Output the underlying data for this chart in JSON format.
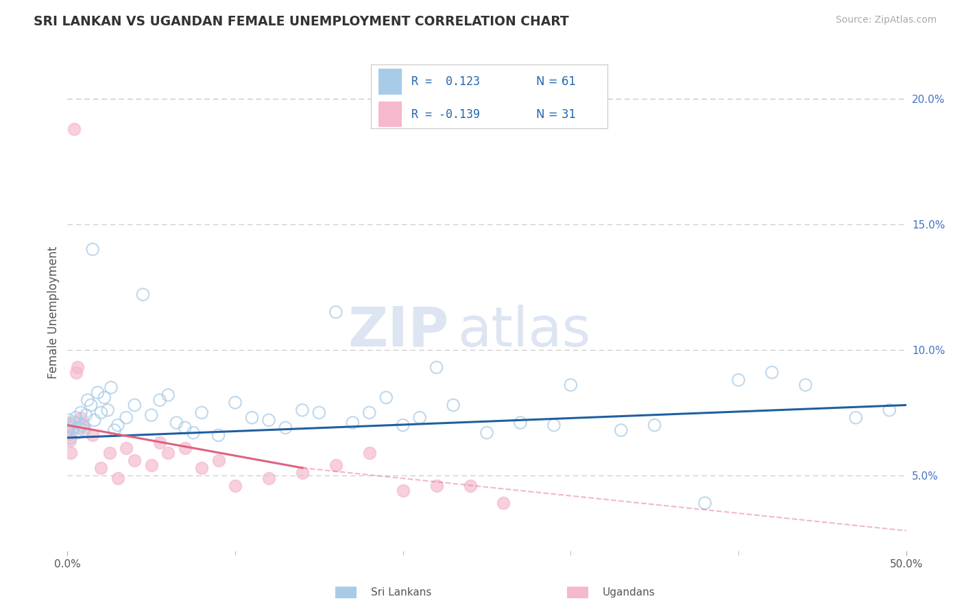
{
  "title": "SRI LANKAN VS UGANDAN FEMALE UNEMPLOYMENT CORRELATION CHART",
  "source": "Source: ZipAtlas.com",
  "ylabel": "Female Unemployment",
  "xlim": [
    0,
    50
  ],
  "ylim": [
    2,
    21
  ],
  "yticks": [
    5,
    10,
    15,
    20
  ],
  "ytick_labels": [
    "5.0%",
    "10.0%",
    "15.0%",
    "20.0%"
  ],
  "color_sri": "#a8cce8",
  "color_uga": "#f5b8cc",
  "color_sri_line": "#1f5f9e",
  "color_uga_line": "#e06080",
  "sri_x": [
    0.05,
    0.1,
    0.15,
    0.2,
    0.3,
    0.4,
    0.5,
    0.6,
    0.7,
    0.8,
    0.9,
    1.0,
    1.1,
    1.2,
    1.4,
    1.5,
    1.6,
    1.8,
    2.0,
    2.2,
    2.4,
    2.6,
    2.8,
    3.0,
    3.5,
    4.0,
    4.5,
    5.0,
    5.5,
    6.0,
    6.5,
    7.0,
    7.5,
    8.0,
    9.0,
    10.0,
    11.0,
    12.0,
    13.0,
    14.0,
    15.0,
    16.0,
    17.0,
    18.0,
    19.0,
    20.0,
    21.0,
    22.0,
    23.0,
    25.0,
    27.0,
    29.0,
    30.0,
    33.0,
    35.0,
    38.0,
    40.0,
    42.0,
    44.0,
    47.0,
    49.0
  ],
  "sri_y": [
    6.8,
    7.2,
    6.5,
    7.0,
    6.9,
    7.1,
    7.3,
    6.7,
    6.9,
    7.5,
    7.0,
    6.8,
    7.4,
    8.0,
    7.8,
    14.0,
    7.2,
    8.3,
    7.5,
    8.1,
    7.6,
    8.5,
    6.8,
    7.0,
    7.3,
    7.8,
    12.2,
    7.4,
    8.0,
    8.2,
    7.1,
    6.9,
    6.7,
    7.5,
    6.6,
    7.9,
    7.3,
    7.2,
    6.9,
    7.6,
    7.5,
    11.5,
    7.1,
    7.5,
    8.1,
    7.0,
    7.3,
    9.3,
    7.8,
    6.7,
    7.1,
    7.0,
    8.6,
    6.8,
    7.0,
    3.9,
    8.8,
    9.1,
    8.6,
    7.3,
    7.6
  ],
  "uga_x": [
    0.05,
    0.1,
    0.15,
    0.2,
    0.3,
    0.4,
    0.5,
    0.6,
    0.8,
    1.0,
    1.5,
    2.0,
    2.5,
    3.0,
    3.5,
    4.0,
    5.0,
    5.5,
    6.0,
    7.0,
    8.0,
    9.0,
    10.0,
    12.0,
    14.0,
    16.0,
    18.0,
    20.0,
    22.0,
    24.0,
    26.0
  ],
  "uga_y": [
    6.6,
    7.1,
    6.4,
    5.9,
    6.8,
    18.8,
    9.1,
    9.3,
    7.3,
    6.9,
    6.6,
    5.3,
    5.9,
    4.9,
    6.1,
    5.6,
    5.4,
    6.3,
    5.9,
    6.1,
    5.3,
    5.6,
    4.6,
    4.9,
    5.1,
    5.4,
    5.9,
    4.4,
    4.6,
    4.6,
    3.9
  ],
  "sri_trend": [
    0,
    50,
    6.5,
    7.8
  ],
  "uga_solid_trend": [
    0,
    14,
    7.0,
    5.3
  ],
  "uga_dash_trend": [
    14,
    50,
    5.3,
    2.8
  ],
  "legend_entries": [
    {
      "color": "#a8cce8",
      "r_label": "R =  0.123",
      "n_label": "N = 61"
    },
    {
      "color": "#f5b8cc",
      "r_label": "R = -0.139",
      "n_label": "N = 31"
    }
  ],
  "bottom_legend": [
    {
      "color": "#a8cce8",
      "label": "Sri Lankans"
    },
    {
      "color": "#f5b8cc",
      "label": "Ugandans"
    }
  ],
  "marker_size": 160,
  "marker_lw": 1.5
}
